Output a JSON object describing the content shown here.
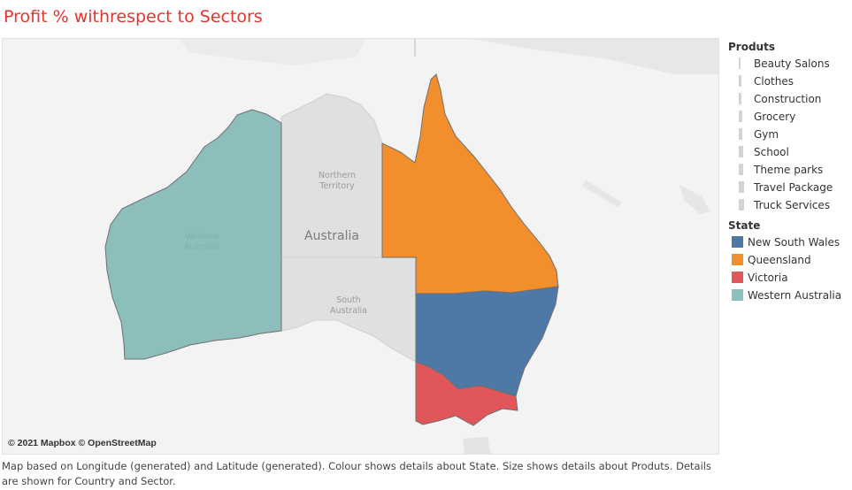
{
  "title": "Profit % withrespect to Sectors",
  "map": {
    "credit": "© 2021 Mapbox © OpenStreetMap",
    "country_label": "Australia",
    "region_labels": {
      "northern_territory": [
        "Northern",
        "Territory"
      ],
      "south_australia": [
        "South",
        "Australia"
      ],
      "western_australia": [
        "Western",
        "Australia"
      ]
    },
    "colors": {
      "new_south_wales": "#4e79a7",
      "queensland": "#f28e2b",
      "victoria": "#e15759",
      "western_australia": "#8cbfbb",
      "base_land": "#dedede",
      "water": "#f3f3f3"
    }
  },
  "legend_size": {
    "title": "Produts",
    "items": [
      {
        "label": "Beauty Salons",
        "icon": "size-bar"
      },
      {
        "label": "Clothes",
        "icon": "size-bar"
      },
      {
        "label": "Construction",
        "icon": "size-bar"
      },
      {
        "label": "Grocery",
        "icon": "size-bar"
      },
      {
        "label": "Gym",
        "icon": "size-bar"
      },
      {
        "label": "School",
        "icon": "size-bar"
      },
      {
        "label": "Theme parks",
        "icon": "size-bar"
      },
      {
        "label": "Travel Package",
        "icon": "size-bar"
      },
      {
        "label": "Truck Services",
        "icon": "size-bar"
      }
    ]
  },
  "legend_state": {
    "title": "State",
    "items": [
      {
        "label": "New South Wales",
        "color": "#4e79a7"
      },
      {
        "label": "Queensland",
        "color": "#f28e2b"
      },
      {
        "label": "Victoria",
        "color": "#e15759"
      },
      {
        "label": "Western Australia",
        "color": "#8cbfbb"
      }
    ]
  },
  "caption": "Map based on Longitude (generated) and Latitude (generated).  Colour shows details about State.  Size shows details about Produts.  Details are shown for Country and Sector."
}
